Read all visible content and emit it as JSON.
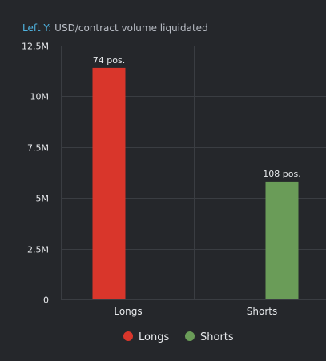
{
  "chart_data": {
    "type": "bar",
    "axis_caption_prefix": "Left Y:",
    "axis_caption": "USD/contract volume liquidated",
    "categories": [
      "Longs",
      "Shorts"
    ],
    "series": [
      {
        "name": "Longs",
        "values": [
          11400000,
          null
        ],
        "color": "#d9362b",
        "bar_label": "74 pos."
      },
      {
        "name": "Shorts",
        "values": [
          null,
          5800000
        ],
        "color": "#6a9c58",
        "bar_label": "108 pos."
      }
    ],
    "yticks": [
      0,
      2500000,
      5000000,
      7500000,
      10000000,
      12500000
    ],
    "ytick_labels": [
      "0",
      "2.5M",
      "5M",
      "7.5M",
      "10M",
      "12.5M"
    ],
    "ylim": [
      0,
      12500000
    ],
    "grid": true,
    "legend": {
      "placement": "bottom",
      "items": [
        {
          "label": "Longs",
          "color": "#d9362b"
        },
        {
          "label": "Shorts",
          "color": "#6a9c58"
        }
      ]
    }
  }
}
